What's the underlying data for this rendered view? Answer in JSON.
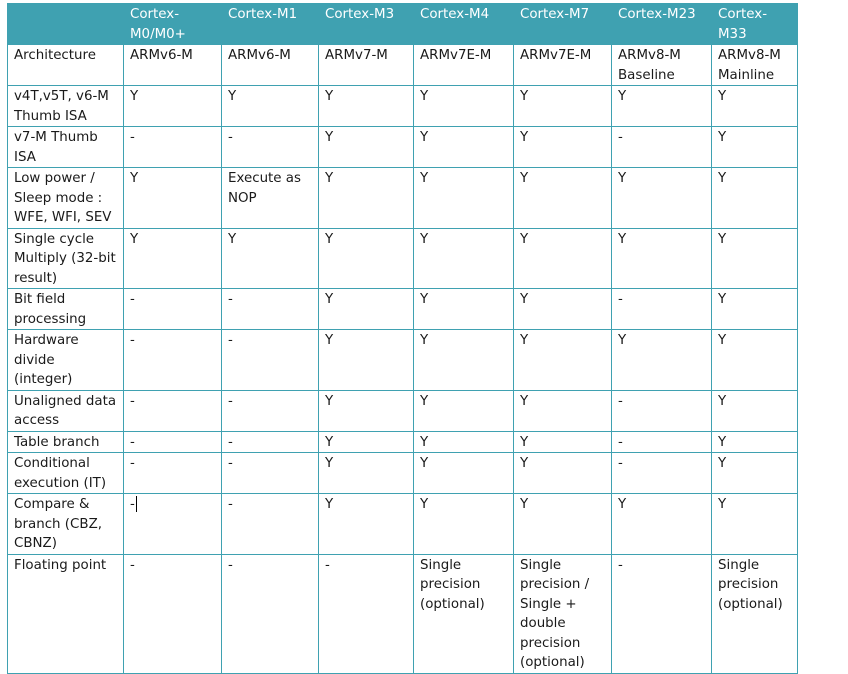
{
  "header": {
    "corner": "",
    "columns": [
      "Cortex-M0/M0+",
      "Cortex-M1",
      "Cortex-M3",
      "Cortex-M4",
      "Cortex-M7",
      "Cortex-M23",
      "Cortex-M33"
    ]
  },
  "rows": [
    {
      "feature": "Architecture",
      "values": [
        "ARMv6-M",
        "ARMv6-M",
        "ARMv7-M",
        "ARMv7E-M",
        "ARMv7E-M",
        "ARMv8-M Baseline",
        "ARMv8-M Mainline"
      ]
    },
    {
      "feature": "v4T,v5T, v6-M Thumb ISA",
      "values": [
        "Y",
        "Y",
        "Y",
        "Y",
        "Y",
        "Y",
        "Y"
      ]
    },
    {
      "feature": "v7-M Thumb ISA",
      "values": [
        "-",
        "-",
        "Y",
        "Y",
        "Y",
        "-",
        "Y"
      ]
    },
    {
      "feature": "Low power / Sleep mode : WFE, WFI, SEV",
      "values": [
        "Y",
        "Execute as NOP",
        "Y",
        "Y",
        "Y",
        "Y",
        "Y"
      ]
    },
    {
      "feature": "Single cycle Multiply (32-bit result)",
      "values": [
        "Y",
        "Y",
        "Y",
        "Y",
        "Y",
        "Y",
        "Y"
      ]
    },
    {
      "feature": "Bit field processing",
      "values": [
        "-",
        "-",
        "Y",
        "Y",
        "Y",
        "-",
        "Y"
      ]
    },
    {
      "feature": "Hardware divide (integer)",
      "values": [
        "-",
        "-",
        "Y",
        "Y",
        "Y",
        "Y",
        "Y"
      ]
    },
    {
      "feature": "Unaligned data access",
      "values": [
        "-",
        "-",
        "Y",
        "Y",
        "Y",
        "-",
        "Y"
      ]
    },
    {
      "feature": "Table branch",
      "values": [
        "-",
        "-",
        "Y",
        "Y",
        "Y",
        "-",
        "Y"
      ]
    },
    {
      "feature": "Conditional execution (IT)",
      "values": [
        "-",
        "-",
        "Y",
        "Y",
        "Y",
        "-",
        "Y"
      ]
    },
    {
      "feature": "Compare & branch (CBZ, CBNZ)",
      "values": [
        "-",
        "-",
        "Y",
        "Y",
        "Y",
        "Y",
        "Y"
      ]
    },
    {
      "feature": "Floating point",
      "values": [
        "-",
        "-",
        "-",
        "Single precision (optional)",
        "Single precision / Single + double precision (optional)",
        "-",
        "Single precision (optional)"
      ]
    }
  ]
}
